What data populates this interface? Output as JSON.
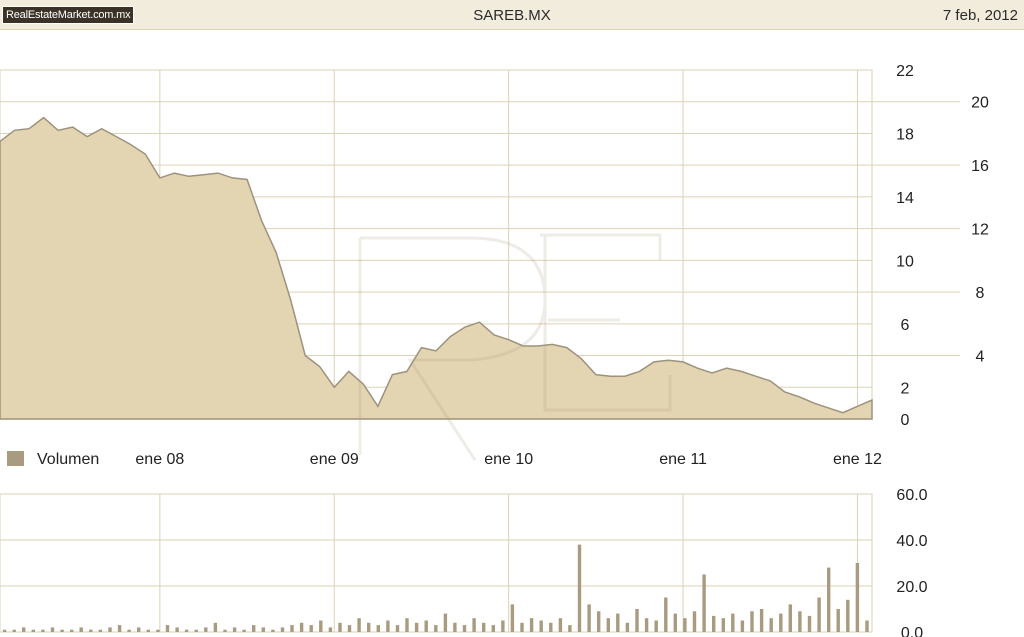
{
  "header": {
    "brand": "RealEstateMarket.com.mx",
    "ticker": "SAREB.MX",
    "date": "7 feb, 2012"
  },
  "colors": {
    "header_bg": "#f2ecdc",
    "area_fill": "#e3d4b2",
    "area_line": "#9d927c",
    "grid": "#ddd1b6",
    "volume_bar": "#a89b80"
  },
  "chart_data": [
    {
      "type": "area",
      "title": "SAREB.MX",
      "x_tick_labels": [
        "ene 08",
        "ene 09",
        "ene 10",
        "ene 11",
        "ene 12"
      ],
      "y_left_ticks": [
        0,
        2,
        4,
        6,
        8,
        10,
        12,
        14,
        16,
        18,
        20,
        22
      ],
      "y_right_ticks": [
        4,
        8,
        12,
        16,
        20
      ],
      "y_left_labels": [
        "0",
        "2",
        "6",
        "10",
        "14",
        "18",
        "22"
      ],
      "y_right_labels": [
        "4",
        "8",
        "12",
        "16",
        "20"
      ],
      "ylim": [
        0,
        22
      ],
      "grid": true,
      "x": [
        "2007-02",
        "2007-03",
        "2007-04",
        "2007-05",
        "2007-06",
        "2007-07",
        "2007-08",
        "2007-09",
        "2007-10",
        "2007-11",
        "2007-12",
        "2008-01",
        "2008-02",
        "2008-03",
        "2008-04",
        "2008-05",
        "2008-06",
        "2008-07",
        "2008-08",
        "2008-09",
        "2008-10",
        "2008-11",
        "2008-12",
        "2009-01",
        "2009-02",
        "2009-03",
        "2009-04",
        "2009-05",
        "2009-06",
        "2009-07",
        "2009-08",
        "2009-09",
        "2009-10",
        "2009-11",
        "2009-12",
        "2010-01",
        "2010-02",
        "2010-03",
        "2010-04",
        "2010-05",
        "2010-06",
        "2010-07",
        "2010-08",
        "2010-09",
        "2010-10",
        "2010-11",
        "2010-12",
        "2011-01",
        "2011-02",
        "2011-03",
        "2011-04",
        "2011-05",
        "2011-06",
        "2011-07",
        "2011-08",
        "2011-09",
        "2011-10",
        "2011-11",
        "2011-12",
        "2012-01",
        "2012-02"
      ],
      "values": [
        17.5,
        18.2,
        18.3,
        19.0,
        18.2,
        18.4,
        17.8,
        18.3,
        17.8,
        17.3,
        16.7,
        15.2,
        15.5,
        15.3,
        15.4,
        15.5,
        15.2,
        15.1,
        12.5,
        10.5,
        7.5,
        4.0,
        3.3,
        2.0,
        3.0,
        2.2,
        0.8,
        2.8,
        3.0,
        4.5,
        4.3,
        5.2,
        5.8,
        6.1,
        5.3,
        5.0,
        4.6,
        4.6,
        4.7,
        4.5,
        3.8,
        2.8,
        2.7,
        2.7,
        3.0,
        3.6,
        3.7,
        3.6,
        3.2,
        2.9,
        3.2,
        3.0,
        2.7,
        2.4,
        1.7,
        1.4,
        1.0,
        0.7,
        0.4,
        0.8,
        1.2
      ]
    },
    {
      "type": "bar",
      "title": "Volumen",
      "legend": [
        "Volumen"
      ],
      "y_tick_labels": [
        "0.0",
        "20.0",
        "40.0",
        "60.0"
      ],
      "ylim": [
        0,
        60
      ],
      "x_tick_labels": [
        "ene 08",
        "ene 09",
        "ene 10",
        "ene 11",
        "ene 12"
      ],
      "values": [
        1,
        1,
        2,
        1,
        1,
        2,
        1,
        1,
        2,
        1,
        1,
        2,
        3,
        1,
        2,
        1,
        1,
        3,
        2,
        1,
        1,
        2,
        4,
        1,
        2,
        1,
        3,
        2,
        1,
        2,
        3,
        4,
        3,
        5,
        2,
        4,
        3,
        6,
        4,
        3,
        5,
        3,
        6,
        4,
        5,
        3,
        8,
        4,
        3,
        6,
        4,
        3,
        5,
        12,
        4,
        6,
        5,
        4,
        6,
        3,
        38,
        12,
        9,
        6,
        8,
        4,
        10,
        6,
        5,
        15,
        8,
        6,
        9,
        25,
        7,
        6,
        8,
        5,
        9,
        10,
        6,
        8,
        12,
        9,
        7,
        15,
        28,
        10,
        14,
        30,
        5
      ]
    }
  ],
  "labels": {
    "volume_legend": "Volumen"
  }
}
